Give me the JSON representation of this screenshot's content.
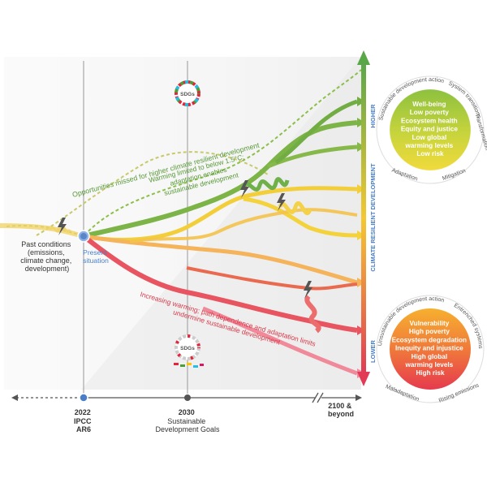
{
  "timeline": {
    "ticks": [
      {
        "year": "2022",
        "sub": [
          "IPCC",
          "AR6"
        ]
      },
      {
        "year": "2030",
        "sub": [
          "Sustainable",
          "Development Goals"
        ]
      },
      {
        "year": "2100 &",
        "sub": [
          "beyond"
        ]
      }
    ]
  },
  "labels": {
    "past_conditions": [
      "Past conditions",
      "(emissions,",
      "climate change,",
      "development)"
    ],
    "present": [
      "Present",
      "situation"
    ],
    "opportunities": "Opportunities missed for higher climate resilient development",
    "warming_limited": [
      "Warming limited to below 1.5°C;",
      "adaptation enables",
      "sustainable development"
    ],
    "increasing_warming": [
      "Increasing warming; path dependence and adaptation limits",
      "undermine sustainable development"
    ],
    "sdgs": "SDGs"
  },
  "axis": {
    "title": "CLIMATE RESILIENT DEVELOPMENT",
    "higher": "HIGHER",
    "lower": "LOWER"
  },
  "high_circle": {
    "items": [
      "Well-being",
      "Low poverty",
      "Ecosystem health",
      "Equity and justice",
      "Low global",
      "warming levels",
      "Low risk"
    ],
    "ring": {
      "top_left": "Sustainable development action",
      "top_right": "System transitions",
      "right": "Transformation",
      "bottom_left": "Adaptation",
      "bottom_right": "Mitigation"
    }
  },
  "low_circle": {
    "items": [
      "Vulnerability",
      "High poverty",
      "Ecosystem degradation",
      "Inequity and injustice",
      "High global",
      "warming levels",
      "High risk"
    ],
    "ring": {
      "top_left": "Unsustainable development action",
      "top_right": "Entrenched systems",
      "bottom_left": "Maladaptation",
      "bottom_right": "Rising emissions"
    }
  },
  "colors": {
    "green": "#6aa84f",
    "yellow": "#f2d23c",
    "orange": "#f0a040",
    "red": "#e84a5f",
    "axis_gray": "#555555"
  }
}
